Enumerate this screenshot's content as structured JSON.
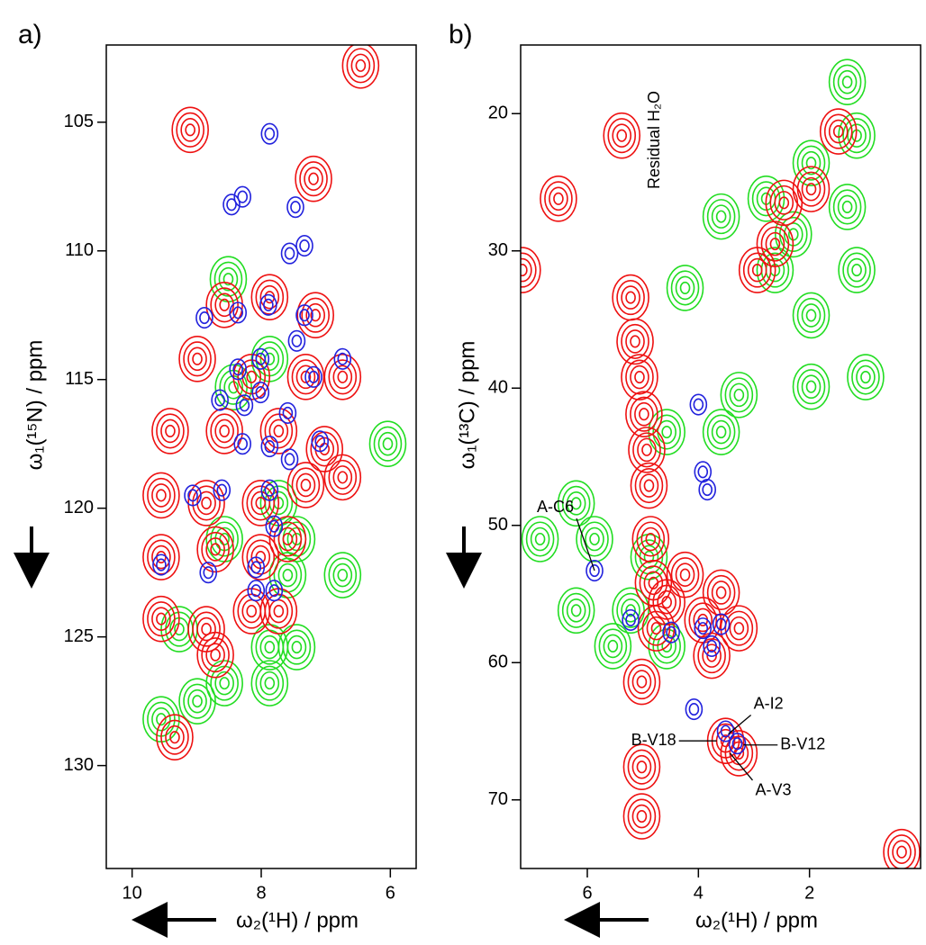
{
  "chart_data": [
    {
      "type": "scatter",
      "panel_label": "a)",
      "x_label": "ω₂(¹H) / ppm",
      "y_label": "ω₁(¹⁵N) / ppm",
      "xlim": [
        10.4,
        5.6
      ],
      "ylim": [
        102,
        134
      ],
      "xticks": [
        10,
        8,
        6
      ],
      "yticks": [
        105,
        110,
        115,
        120,
        125,
        130
      ],
      "series": [
        {
          "color": "#22dd22",
          "x": [
            9.55,
            8.99,
            8.57,
            7.87,
            9.27,
            7.87,
            7.45,
            7.59,
            7.45,
            8.57,
            7.73,
            8.43,
            7.87,
            6.74,
            6.04,
            8.51
          ],
          "values": [
            128.2,
            127.5,
            126.8,
            126.8,
            124.7,
            125.4,
            125.4,
            122.6,
            121.2,
            121.2,
            119.8,
            115.3,
            114.2,
            122.6,
            117.5,
            111.1
          ]
        },
        {
          "color": "#ee1111",
          "x": [
            8.57,
            7.87,
            7.16,
            8.99,
            8.15,
            7.31,
            6.74,
            9.41,
            8.57,
            7.73,
            7.02,
            9.55,
            8.85,
            8.01,
            7.31,
            6.74,
            9.55,
            8.71,
            8.01,
            7.59,
            9.55,
            8.85,
            8.15,
            7.73,
            8.71,
            9.34,
            7.19,
            6.46,
            9.1
          ],
          "values": [
            112.1,
            111.8,
            112.5,
            114.2,
            114.9,
            114.9,
            114.9,
            117.0,
            117.0,
            117.0,
            117.7,
            119.5,
            119.8,
            119.8,
            119.1,
            118.8,
            121.9,
            121.6,
            121.9,
            121.2,
            124.3,
            124.7,
            124.0,
            124.0,
            125.7,
            128.9,
            107.2,
            102.8,
            105.3
          ]
        },
        {
          "color": "#2222dd",
          "x": [
            7.87,
            8.29,
            8.46,
            7.47,
            7.56,
            7.33,
            8.88,
            8.36,
            7.89,
            7.33,
            6.74,
            7.45,
            8.36,
            8.01,
            8.64,
            8.26,
            8.01,
            7.19,
            7.59,
            8.29,
            7.87,
            7.09,
            7.56,
            9.06,
            8.61,
            7.87,
            7.8,
            9.55,
            8.82,
            8.08,
            8.08,
            7.8
          ],
          "values": [
            105.45,
            107.9,
            108.2,
            108.3,
            110.1,
            109.8,
            112.6,
            112.4,
            112.1,
            112.5,
            114.2,
            113.5,
            114.6,
            114.2,
            115.8,
            116.0,
            115.5,
            114.9,
            116.3,
            117.5,
            117.6,
            117.4,
            118.1,
            119.5,
            119.3,
            119.3,
            120.7,
            122.2,
            122.5,
            122.3,
            123.2,
            123.2
          ]
        }
      ]
    },
    {
      "type": "scatter",
      "panel_label": "b)",
      "x_label": "ω₂(¹H) / ppm",
      "y_label": "ω₁(¹³C) / ppm",
      "note": "Residual H₂O",
      "xlim": [
        7.2,
        0
      ],
      "ylim": [
        15,
        75
      ],
      "xticks": [
        6,
        4,
        2
      ],
      "yticks": [
        20,
        30,
        40,
        50,
        60,
        70
      ],
      "series": [
        {
          "color": "#22dd22",
          "x": [
            1.15,
            1.97,
            2.78,
            3.59,
            2.29,
            1.32,
            2.62,
            1.97,
            1.15,
            4.24,
            3.27,
            1.97,
            0.99,
            4.57,
            3.59,
            6.2,
            6.85,
            5.87,
            4.89,
            5.22,
            6.2,
            4.57,
            5.54,
            1.32
          ],
          "values": [
            21.6,
            23.6,
            26.2,
            27.5,
            28.8,
            26.8,
            31.4,
            34.7,
            31.4,
            32.7,
            40.5,
            39.9,
            39.2,
            43.2,
            43.2,
            48.4,
            51.0,
            51.0,
            52.3,
            56.2,
            56.2,
            58.8,
            58.8,
            17.7
          ]
        },
        {
          "color": "#ee1111",
          "x": [
            5.22,
            5.14,
            5.06,
            4.98,
            4.93,
            4.89,
            4.86,
            4.81,
            4.76,
            5.02,
            5.02,
            5.02,
            6.52,
            5.38,
            2.46,
            1.97,
            1.48,
            2.62,
            2.94,
            4.24,
            3.59,
            3.92,
            4.57,
            3.27,
            3.76,
            3.51,
            3.27,
            0.34,
            7.17
          ],
          "values": [
            33.4,
            36.6,
            39.2,
            41.9,
            44.5,
            47.1,
            51.0,
            54.2,
            57.5,
            61.4,
            67.6,
            71.2,
            26.2,
            21.6,
            26.5,
            25.5,
            21.3,
            29.5,
            31.4,
            53.6,
            54.9,
            56.9,
            55.6,
            57.5,
            59.5,
            65.7,
            66.6,
            73.8,
            31.4
          ]
        },
        {
          "color": "#2222dd",
          "x": [
            4.0,
            3.92,
            3.84,
            5.87,
            5.22,
            4.49,
            3.92,
            3.76,
            3.59,
            3.51,
            3.3,
            4.08
          ],
          "values": [
            41.2,
            46.1,
            47.4,
            53.3,
            56.9,
            57.8,
            57.5,
            58.8,
            57.2,
            65.0,
            65.9,
            63.4
          ]
        }
      ],
      "annotations": [
        {
          "text": "A-C6",
          "x": 5.87,
          "y": 53.3
        },
        {
          "text": "A-I2",
          "x": 3.46,
          "y": 65.2
        },
        {
          "text": "B-V18",
          "x": 3.67,
          "y": 65.7
        },
        {
          "text": "B-V12",
          "x": 3.19,
          "y": 66.0
        },
        {
          "text": "A-V3",
          "x": 3.43,
          "y": 66.6
        }
      ]
    }
  ]
}
